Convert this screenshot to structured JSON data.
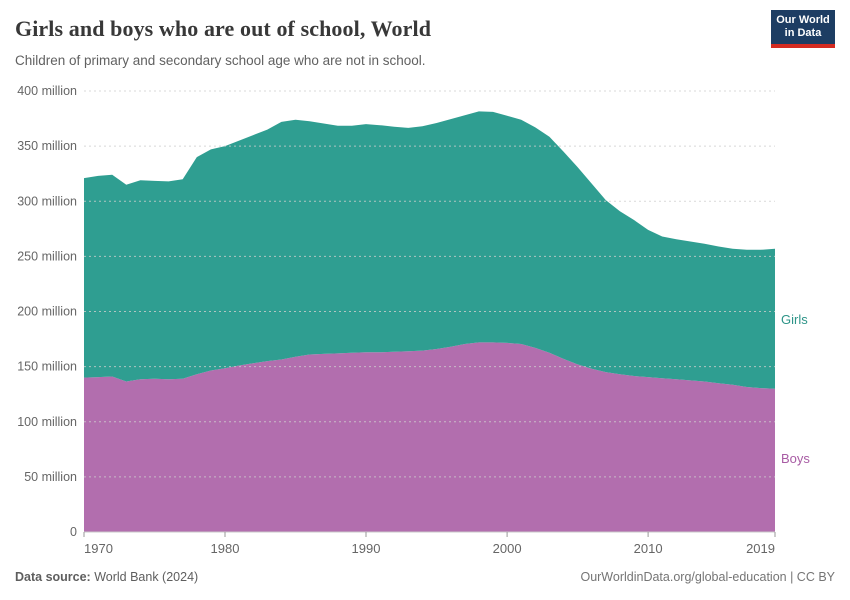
{
  "header": {
    "title": "Girls and boys who are out of school, World",
    "subtitle": "Children of primary and secondary school age who are not in school.",
    "logo": {
      "line1": "Our World",
      "line2": "in Data",
      "bg_color": "#1d3d63",
      "bar_color": "#d42b21"
    }
  },
  "entity_labels": {
    "girls": "Girls",
    "boys": "Boys"
  },
  "footer": {
    "source_label": "Data source:",
    "source_value": " World Bank (2024)",
    "link": "OurWorldinData.org/global-education | CC BY"
  },
  "chart_data": {
    "type": "area",
    "stacked": true,
    "title": "Girls and boys who are out of school, World",
    "xlabel": "",
    "ylabel": "",
    "xlim": [
      1970,
      2019
    ],
    "ylim": [
      0,
      400
    ],
    "grid": "dashed-horizontal",
    "legend_position": "right-edge-labels",
    "x": [
      1970,
      1971,
      1972,
      1973,
      1974,
      1975,
      1976,
      1977,
      1978,
      1979,
      1980,
      1981,
      1982,
      1983,
      1984,
      1985,
      1986,
      1987,
      1988,
      1989,
      1990,
      1991,
      1992,
      1993,
      1994,
      1995,
      1996,
      1997,
      1998,
      1999,
      2000,
      2001,
      2002,
      2003,
      2004,
      2005,
      2006,
      2007,
      2008,
      2009,
      2010,
      2011,
      2012,
      2013,
      2014,
      2015,
      2016,
      2017,
      2018,
      2019
    ],
    "series": [
      {
        "name": "Boys",
        "color": "#b26eae",
        "label_color": "#a85ca4",
        "unit": "million",
        "values": [
          140,
          140.5,
          141,
          136.5,
          138.5,
          139,
          138.5,
          139,
          143,
          146.5,
          148.5,
          151,
          153,
          155,
          156.5,
          159,
          161,
          161.5,
          162,
          162.5,
          163,
          163,
          163.5,
          164,
          164.5,
          166,
          168,
          170.5,
          172,
          172,
          171.5,
          170.5,
          167,
          162.5,
          157,
          152,
          148,
          145,
          143,
          141.5,
          140.5,
          139.5,
          138.5,
          137.5,
          136.5,
          135,
          133.5,
          131.5,
          130.5,
          130
        ]
      },
      {
        "name": "Girls",
        "color": "#2f9e91",
        "label_color": "#2d9488",
        "unit": "million",
        "values": [
          181,
          182.5,
          183,
          178.5,
          180.5,
          179.5,
          179.5,
          181,
          197,
          200.5,
          201.5,
          204,
          207,
          210,
          215.5,
          215,
          211.5,
          209,
          206.5,
          206,
          207,
          206,
          204,
          202.5,
          203.5,
          205,
          206.5,
          207.5,
          209.5,
          209,
          206,
          203.5,
          200,
          196,
          188,
          179,
          168,
          156,
          148,
          141.5,
          133.5,
          128.5,
          127,
          126,
          125,
          124,
          123.5,
          124.5,
          125.5,
          127
        ]
      }
    ],
    "yticks": [
      {
        "value": 0,
        "label": "0"
      },
      {
        "value": 50,
        "label": "50 million"
      },
      {
        "value": 100,
        "label": "100 million"
      },
      {
        "value": 150,
        "label": "150 million"
      },
      {
        "value": 200,
        "label": "200 million"
      },
      {
        "value": 250,
        "label": "250 million"
      },
      {
        "value": 300,
        "label": "300 million"
      },
      {
        "value": 350,
        "label": "350 million"
      },
      {
        "value": 400,
        "label": "400 million"
      }
    ],
    "xticks": [
      {
        "value": 1970,
        "label": "1970",
        "anchor": "start"
      },
      {
        "value": 1980,
        "label": "1980",
        "anchor": "middle"
      },
      {
        "value": 1990,
        "label": "1990",
        "anchor": "middle"
      },
      {
        "value": 2000,
        "label": "2000",
        "anchor": "middle"
      },
      {
        "value": 2010,
        "label": "2010",
        "anchor": "middle"
      },
      {
        "value": 2019,
        "label": "2019",
        "anchor": "end"
      }
    ],
    "style": {
      "gridline_color": "#cfcfcf",
      "axis_line_color": "#c8c8c8",
      "tick_color": "#999999",
      "tick_label_color": "#666666"
    }
  }
}
